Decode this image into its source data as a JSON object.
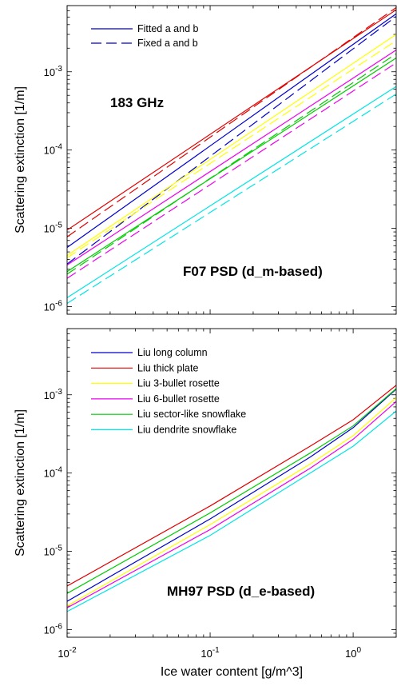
{
  "figure": {
    "xlabel": "Ice water content [g/m^3]",
    "x_ticks": [
      {
        "value": 0.01,
        "base": "10",
        "exp": "-2"
      },
      {
        "value": 0.1,
        "base": "10",
        "exp": "-1"
      },
      {
        "value": 1,
        "base": "10",
        "exp": "0"
      }
    ]
  },
  "chart_data": [
    {
      "type": "line",
      "title": "",
      "xlabel": "",
      "ylabel": "Scattering extinction [1/m]",
      "xscale": "log",
      "yscale": "log",
      "xlim": [
        0.01,
        2
      ],
      "ylim": [
        8e-07,
        0.007
      ],
      "y_ticks": [
        {
          "value": 1e-06,
          "base": "10",
          "exp": "-6"
        },
        {
          "value": 1e-05,
          "base": "10",
          "exp": "-5"
        },
        {
          "value": 0.0001,
          "base": "10",
          "exp": "-4"
        },
        {
          "value": 0.001,
          "base": "10",
          "exp": "-3"
        }
      ],
      "grid": false,
      "annotations": [
        "183 GHz",
        "F07 PSD (d_m-based)"
      ],
      "legend": {
        "placement": "top-left",
        "entries": [
          {
            "label": "Fitted a and b",
            "style": "solid",
            "color": "#0000cc"
          },
          {
            "label": "Fixed a and b",
            "style": "dashed",
            "color": "#0000cc"
          }
        ]
      },
      "series": [
        {
          "color": "#e00000",
          "style": "solid",
          "x": [
            0.01,
            2
          ],
          "y": [
            9.5e-06,
            0.0062
          ]
        },
        {
          "color": "#e00000",
          "style": "dashed",
          "x": [
            0.01,
            2
          ],
          "y": [
            7.8e-06,
            0.0066
          ]
        },
        {
          "color": "#0000cc",
          "style": "solid",
          "x": [
            0.01,
            2
          ],
          "y": [
            5.7e-06,
            0.0055
          ]
        },
        {
          "color": "#0000cc",
          "style": "dashed",
          "x": [
            0.01,
            2
          ],
          "y": [
            3.5e-06,
            0.0051
          ]
        },
        {
          "color": "#ffff00",
          "style": "solid",
          "x": [
            0.01,
            2
          ],
          "y": [
            4.5e-06,
            0.003
          ]
        },
        {
          "color": "#ffff00",
          "style": "dashed",
          "x": [
            0.01,
            2
          ],
          "y": [
            4.2e-06,
            0.0025
          ]
        },
        {
          "color": "#00cc00",
          "style": "solid",
          "x": [
            0.01,
            2
          ],
          "y": [
            2.8e-06,
            0.0015
          ]
        },
        {
          "color": "#00cc00",
          "style": "dashed",
          "x": [
            0.01,
            2
          ],
          "y": [
            2.6e-06,
            0.0017
          ]
        },
        {
          "color": "#ee00ee",
          "style": "solid",
          "x": [
            0.01,
            2
          ],
          "y": [
            3.4e-06,
            0.0019
          ]
        },
        {
          "color": "#ee00ee",
          "style": "dashed",
          "x": [
            0.01,
            2
          ],
          "y": [
            2.3e-06,
            0.0013
          ]
        },
        {
          "color": "#00e5e5",
          "style": "solid",
          "x": [
            0.01,
            2
          ],
          "y": [
            1.3e-06,
            0.00065
          ]
        },
        {
          "color": "#00e5e5",
          "style": "dashed",
          "x": [
            0.01,
            2
          ],
          "y": [
            1.1e-06,
            0.00052
          ]
        }
      ]
    },
    {
      "type": "line",
      "title": "",
      "xlabel": "Ice water content [g/m^3]",
      "ylabel": "Scattering extinction [1/m]",
      "xscale": "log",
      "yscale": "log",
      "xlim": [
        0.01,
        2
      ],
      "ylim": [
        8e-07,
        0.007
      ],
      "y_ticks": [
        {
          "value": 1e-06,
          "base": "10",
          "exp": "-6"
        },
        {
          "value": 1e-05,
          "base": "10",
          "exp": "-5"
        },
        {
          "value": 0.0001,
          "base": "10",
          "exp": "-4"
        },
        {
          "value": 0.001,
          "base": "10",
          "exp": "-3"
        }
      ],
      "grid": false,
      "annotations": [
        "MH97 PSD (d_e-based)"
      ],
      "legend": {
        "placement": "top-left"
      },
      "series": [
        {
          "name": "Liu long column",
          "color": "#0000cc",
          "style": "solid",
          "x": [
            0.01,
            0.1,
            0.5,
            1,
            2
          ],
          "y": [
            2.3e-06,
            2.6e-05,
            0.00016,
            0.00038,
            0.00118
          ]
        },
        {
          "name": "Liu thick plate",
          "color": "#e00000",
          "style": "solid",
          "x": [
            0.01,
            0.1,
            0.5,
            1,
            2
          ],
          "y": [
            3.6e-06,
            3.8e-05,
            0.00022,
            0.00048,
            0.00132
          ]
        },
        {
          "name": "Liu 3-bullet rosette",
          "color": "#ffff00",
          "style": "solid",
          "x": [
            0.01,
            0.1,
            0.5,
            1,
            2
          ],
          "y": [
            2e-06,
            2.2e-05,
            0.00013,
            0.0003,
            0.00092
          ]
        },
        {
          "name": "Liu 6-bullet rosette",
          "color": "#ee00ee",
          "style": "solid",
          "x": [
            0.01,
            0.1,
            0.5,
            1,
            2
          ],
          "y": [
            1.9e-06,
            1.9e-05,
            0.000115,
            0.00027,
            0.00082
          ]
        },
        {
          "name": "Liu sector-like snowflake",
          "color": "#00cc00",
          "style": "solid",
          "x": [
            0.01,
            0.1,
            0.5,
            1,
            2
          ],
          "y": [
            2.9e-06,
            3.1e-05,
            0.00018,
            0.0004,
            0.0012
          ]
        },
        {
          "name": "Liu dendrite snowflake",
          "color": "#00e5e5",
          "style": "solid",
          "x": [
            0.01,
            0.1,
            0.5,
            1,
            2
          ],
          "y": [
            1.7e-06,
            1.6e-05,
            0.0001,
            0.00022,
            0.00062
          ]
        }
      ]
    }
  ]
}
